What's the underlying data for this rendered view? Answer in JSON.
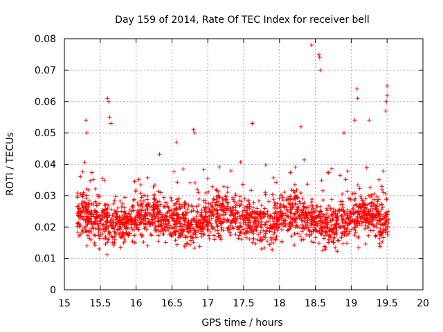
{
  "chart_data": {
    "type": "scatter",
    "title": "Day 159 of 2014, Rate Of TEC Index for receiver bell",
    "xlabel": "GPS time / hours",
    "ylabel": "ROTI / TECUs",
    "xlim": [
      15,
      20
    ],
    "ylim": [
      0,
      0.08
    ],
    "x_ticks": [
      15,
      15.5,
      16,
      16.5,
      17,
      17.5,
      18,
      18.5,
      19,
      19.5,
      20
    ],
    "x_tick_labels": [
      "15",
      "15.5",
      "16",
      "16.5",
      "17",
      "17.5",
      "18",
      "18.5",
      "19",
      "19.5",
      "20"
    ],
    "y_ticks": [
      0,
      0.01,
      0.02,
      0.03,
      0.04,
      0.05,
      0.06,
      0.07,
      0.08
    ],
    "y_tick_labels": [
      "0",
      "0.01",
      "0.02",
      "0.03",
      "0.04",
      "0.05",
      "0.06",
      "0.07",
      "0.08"
    ],
    "grid": true,
    "marker": "+",
    "marker_color": "#ff0000",
    "series": [
      {
        "name": "ROTI",
        "x_range": [
          15.18,
          19.52
        ],
        "typical_range": [
          0.01,
          0.035
        ],
        "n_points": 2600,
        "notable_points": [
          {
            "x": 15.3,
            "y": 0.054
          },
          {
            "x": 15.31,
            "y": 0.05
          },
          {
            "x": 15.6,
            "y": 0.061
          },
          {
            "x": 15.62,
            "y": 0.06
          },
          {
            "x": 15.63,
            "y": 0.055
          },
          {
            "x": 15.65,
            "y": 0.053
          },
          {
            "x": 16.56,
            "y": 0.047
          },
          {
            "x": 16.8,
            "y": 0.051
          },
          {
            "x": 16.82,
            "y": 0.05
          },
          {
            "x": 17.62,
            "y": 0.053
          },
          {
            "x": 18.45,
            "y": 0.078
          },
          {
            "x": 18.55,
            "y": 0.075
          },
          {
            "x": 18.56,
            "y": 0.074
          },
          {
            "x": 18.57,
            "y": 0.07
          },
          {
            "x": 19.08,
            "y": 0.064
          },
          {
            "x": 19.09,
            "y": 0.061
          },
          {
            "x": 19.25,
            "y": 0.054
          },
          {
            "x": 19.5,
            "y": 0.065
          },
          {
            "x": 19.5,
            "y": 0.062
          },
          {
            "x": 19.49,
            "y": 0.06
          },
          {
            "x": 19.48,
            "y": 0.057
          },
          {
            "x": 18.3,
            "y": 0.052
          },
          {
            "x": 18.9,
            "y": 0.05
          },
          {
            "x": 19.05,
            "y": 0.054
          }
        ]
      }
    ]
  }
}
